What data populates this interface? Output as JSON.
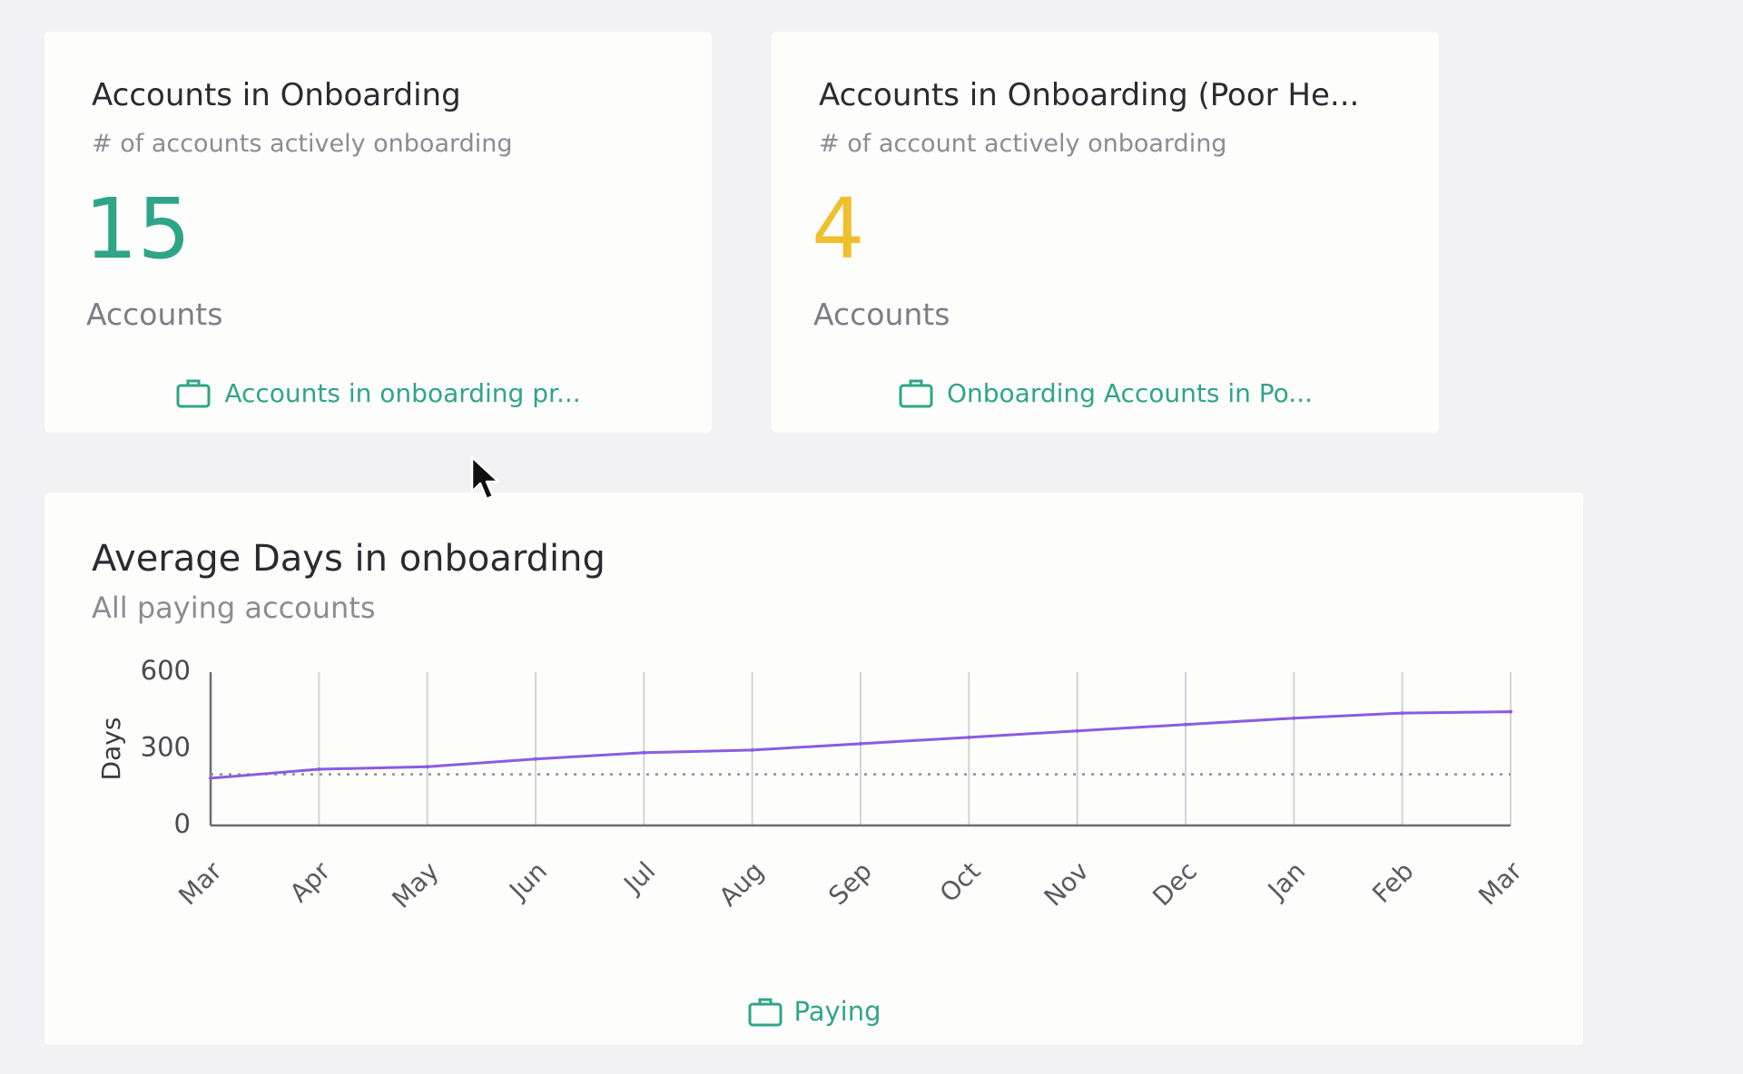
{
  "theme": {
    "accent": "#2fa588",
    "warning": "#f0bf2e",
    "line": "#8a5ce2"
  },
  "cards": [
    {
      "title": "Accounts in Onboarding",
      "subtitle": "# of accounts actively onboarding",
      "value": "15",
      "unit": "Accounts",
      "link_label": "Accounts in onboarding pr...",
      "link_icon": "briefcase-icon"
    },
    {
      "title": "Accounts in Onboarding (Poor He...",
      "subtitle": "# of account actively onboarding",
      "value": "4",
      "unit": "Accounts",
      "link_label": "Onboarding Accounts in Po...",
      "link_icon": "briefcase-icon"
    }
  ],
  "chart_card": {
    "title": "Average Days in onboarding",
    "subtitle": "All paying accounts",
    "legend_label": "Paying",
    "legend_icon": "briefcase-icon"
  },
  "chart_data": {
    "type": "line",
    "title": "Average Days in onboarding",
    "subtitle": "All paying accounts",
    "xlabel": "",
    "ylabel": "Days",
    "categories": [
      "Mar",
      "Apr",
      "May",
      "Jun",
      "Jul",
      "Aug",
      "Sep",
      "Oct",
      "Nov",
      "Dec",
      "Jan",
      "Feb",
      "Mar"
    ],
    "yticks": [
      0,
      300,
      600
    ],
    "ylim": [
      0,
      600
    ],
    "series": [
      {
        "name": "Paying",
        "color": "#8a5ce2",
        "values": [
          185,
          220,
          230,
          260,
          285,
          295,
          320,
          345,
          370,
          395,
          420,
          440,
          445
        ]
      }
    ],
    "reference_line": {
      "value": 200,
      "style": "dotted"
    },
    "grid": "vertical",
    "legend_position": "bottom-center"
  }
}
